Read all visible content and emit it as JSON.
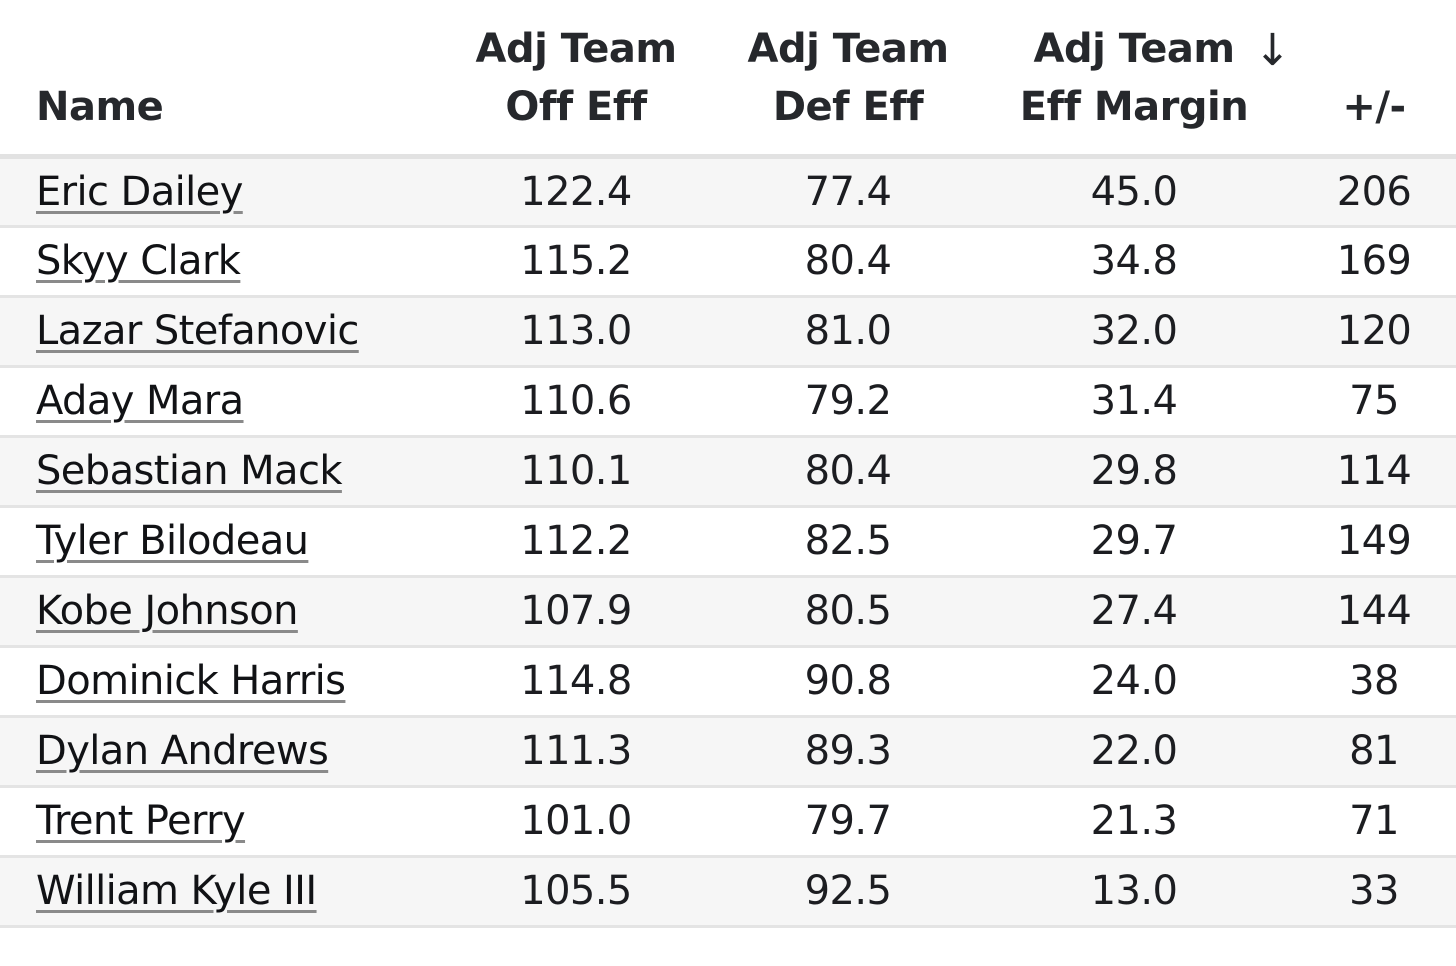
{
  "table": {
    "columns": [
      {
        "key": "name",
        "label_line1": "",
        "label_line2": "Name"
      },
      {
        "key": "adj_team_off_eff",
        "label_line1": "Adj Team",
        "label_line2": "Off Eff"
      },
      {
        "key": "adj_team_def_eff",
        "label_line1": "Adj Team",
        "label_line2": "Def Eff"
      },
      {
        "key": "adj_team_eff_margin",
        "label_line1": "Adj Team",
        "label_line2": "Eff Margin",
        "sort_indicator": "↓"
      },
      {
        "key": "plus_minus",
        "label_line1": "",
        "label_line2": "+/-"
      }
    ],
    "sorted_by": "adj_team_eff_margin",
    "sort_direction": "descending",
    "rows": [
      {
        "name": "Eric Dailey",
        "off": "122.4",
        "def": "77.4",
        "margin": "45.0",
        "pm": "206"
      },
      {
        "name": "Skyy Clark",
        "off": "115.2",
        "def": "80.4",
        "margin": "34.8",
        "pm": "169"
      },
      {
        "name": "Lazar Stefanovic",
        "off": "113.0",
        "def": "81.0",
        "margin": "32.0",
        "pm": "120"
      },
      {
        "name": "Aday Mara",
        "off": "110.6",
        "def": "79.2",
        "margin": "31.4",
        "pm": "75"
      },
      {
        "name": "Sebastian Mack",
        "off": "110.1",
        "def": "80.4",
        "margin": "29.8",
        "pm": "114"
      },
      {
        "name": "Tyler Bilodeau",
        "off": "112.2",
        "def": "82.5",
        "margin": "29.7",
        "pm": "149"
      },
      {
        "name": "Kobe Johnson",
        "off": "107.9",
        "def": "80.5",
        "margin": "27.4",
        "pm": "144"
      },
      {
        "name": "Dominick Harris",
        "off": "114.8",
        "def": "90.8",
        "margin": "24.0",
        "pm": "38"
      },
      {
        "name": "Dylan Andrews",
        "off": "111.3",
        "def": "89.3",
        "margin": "22.0",
        "pm": "81"
      },
      {
        "name": "Trent Perry",
        "off": "101.0",
        "def": "79.7",
        "margin": "21.3",
        "pm": "71"
      },
      {
        "name": "William Kyle III",
        "off": "105.5",
        "def": "92.5",
        "margin": "13.0",
        "pm": "33"
      }
    ]
  },
  "colors": {
    "text": "#1e1f23",
    "row_alt": "#f6f6f6",
    "row_border": "#e4e4e4",
    "header_border": "#e2e2e2",
    "link_underline": "#8a8a8a"
  }
}
